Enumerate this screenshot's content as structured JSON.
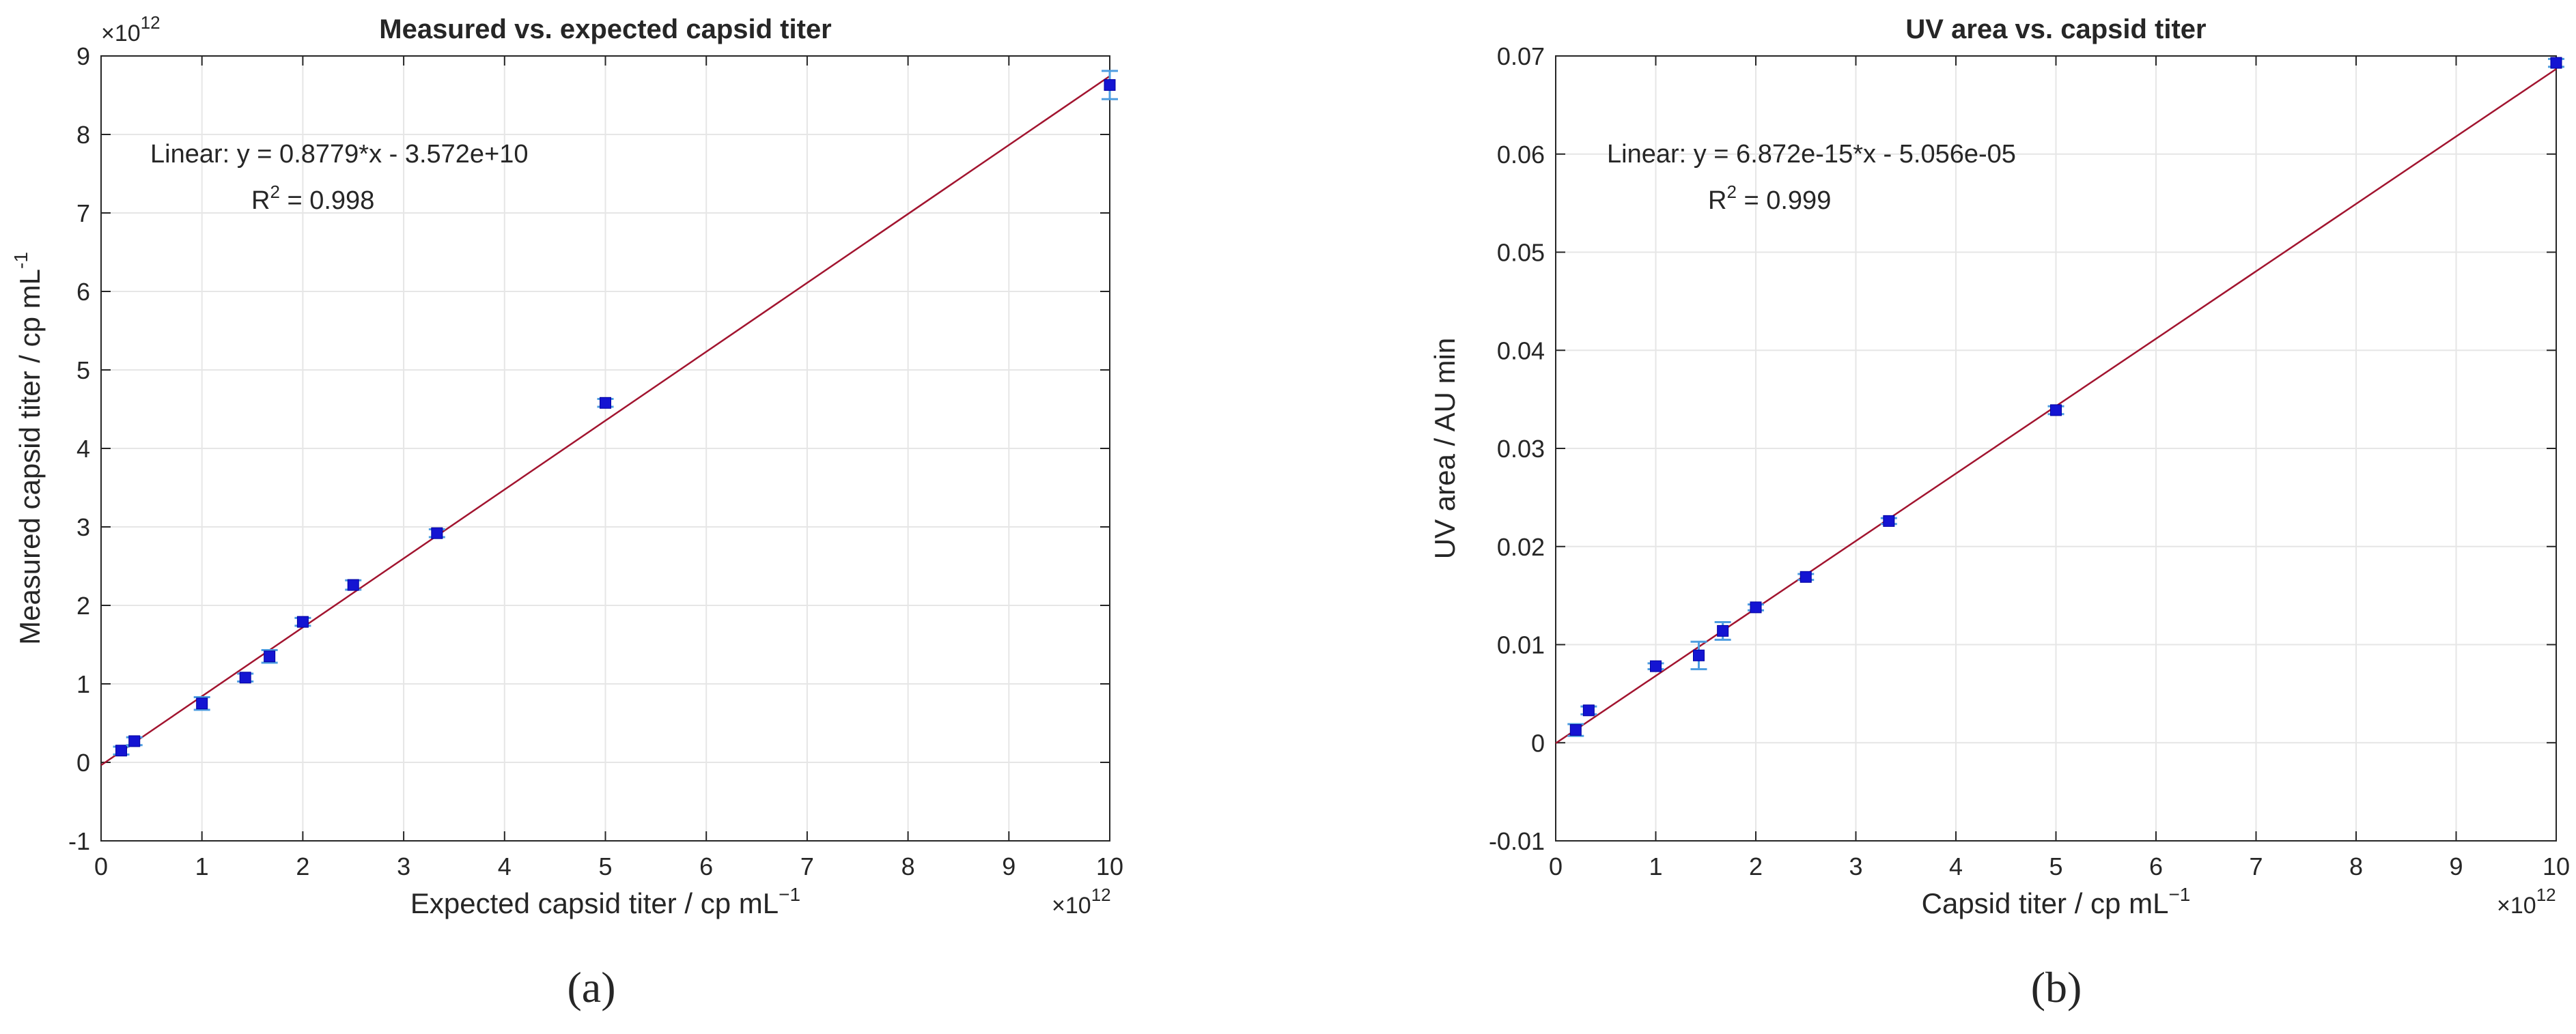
{
  "chart_data": [
    {
      "type": "scatter",
      "title": "Measured vs. expected capsid titer",
      "xlabel": "Expected capsid titer / cp mL",
      "xlabel_sup": "−1",
      "ylabel": "Measured capsid titer / cp mL",
      "ylabel_sup": "-1",
      "x_multiplier": "10",
      "x_multiplier_sup": "12",
      "y_multiplier": "10",
      "y_multiplier_sup": "12",
      "times": "×",
      "xlim": [
        0,
        10
      ],
      "ylim": [
        -1,
        9
      ],
      "xticks": [
        0,
        1,
        2,
        3,
        4,
        5,
        6,
        7,
        8,
        9,
        10
      ],
      "yticks": [
        -1,
        0,
        1,
        2,
        3,
        4,
        5,
        6,
        7,
        8,
        9
      ],
      "grid": true,
      "legend": "none",
      "fit": {
        "equation": "Linear:  y = 0.8779*x - 3.572e+10",
        "r2_prefix": "R",
        "r2_sup": "2",
        "r2_value": " = 0.998",
        "slope": 0.8779,
        "intercept": -0.03572
      },
      "points": [
        {
          "x": 0.2,
          "y": 0.15,
          "err": 0.05
        },
        {
          "x": 0.33,
          "y": 0.27,
          "err": 0.05
        },
        {
          "x": 1.0,
          "y": 0.75,
          "err": 0.08
        },
        {
          "x": 1.43,
          "y": 1.08,
          "err": 0.05
        },
        {
          "x": 1.67,
          "y": 1.35,
          "err": 0.08
        },
        {
          "x": 2.0,
          "y": 1.79,
          "err": 0.05
        },
        {
          "x": 2.5,
          "y": 2.26,
          "err": 0.06
        },
        {
          "x": 3.33,
          "y": 2.92,
          "err": 0.05
        },
        {
          "x": 5.0,
          "y": 4.58,
          "err": 0.05
        },
        {
          "x": 10.0,
          "y": 8.63,
          "err": 0.18
        }
      ],
      "caption": "(a)"
    },
    {
      "type": "scatter",
      "title": "UV area vs. capsid titer",
      "xlabel": "Capsid titer / cp mL",
      "xlabel_sup": "−1",
      "ylabel": "UV area / AU min",
      "x_multiplier": "10",
      "x_multiplier_sup": "12",
      "times": "×",
      "xlim": [
        0,
        10
      ],
      "ylim": [
        -0.01,
        0.07
      ],
      "xticks": [
        0,
        1,
        2,
        3,
        4,
        5,
        6,
        7,
        8,
        9,
        10
      ],
      "yticks": [
        -0.01,
        0,
        0.01,
        0.02,
        0.03,
        0.04,
        0.05,
        0.06,
        0.07
      ],
      "ytick_labels": [
        "-0.01",
        "0",
        "0.01",
        "0.02",
        "0.03",
        "0.04",
        "0.05",
        "0.06",
        "0.07"
      ],
      "grid": true,
      "legend": "none",
      "fit": {
        "equation": "Linear:  y = 6.872e-15*x - 5.056e-05",
        "r2_prefix": "R",
        "r2_sup": "2",
        "r2_value": " = 0.999",
        "slope": 0.006872,
        "intercept": -5.056e-05
      },
      "points": [
        {
          "x": 0.2,
          "y": 0.0013,
          "err": 0.0006
        },
        {
          "x": 0.33,
          "y": 0.0033,
          "err": 0.0004
        },
        {
          "x": 1.0,
          "y": 0.0078,
          "err": 0.0003
        },
        {
          "x": 1.43,
          "y": 0.0089,
          "err": 0.0014
        },
        {
          "x": 1.67,
          "y": 0.0114,
          "err": 0.0009
        },
        {
          "x": 2.0,
          "y": 0.0138,
          "err": 0.0003
        },
        {
          "x": 2.5,
          "y": 0.0169,
          "err": 0.0003
        },
        {
          "x": 3.33,
          "y": 0.0226,
          "err": 0.0003
        },
        {
          "x": 5.0,
          "y": 0.0339,
          "err": 0.0004
        },
        {
          "x": 10.0,
          "y": 0.0693,
          "err": 0.0004
        }
      ],
      "caption": "(b)"
    }
  ]
}
